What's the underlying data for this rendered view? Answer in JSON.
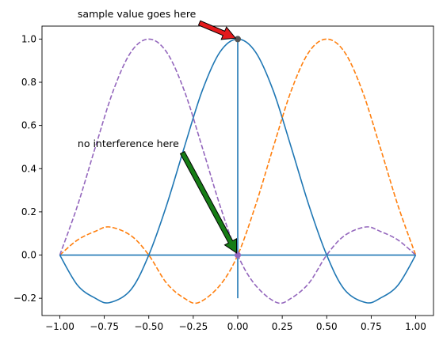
{
  "chart_data": {
    "type": "line",
    "title": "",
    "xlabel": "",
    "ylabel": "",
    "xlim": [
      -1.1,
      1.1
    ],
    "ylim": [
      -0.28,
      1.06
    ],
    "grid": false,
    "legend": "none",
    "x_ticks": [
      -1.0,
      -0.75,
      -0.5,
      -0.25,
      0.0,
      0.25,
      0.5,
      0.75,
      1.0
    ],
    "x_tick_labels": [
      "−1.00",
      "−0.75",
      "−0.50",
      "−0.25",
      "0.00",
      "0.25",
      "0.50",
      "0.75",
      "1.00"
    ],
    "y_ticks": [
      -0.2,
      0.0,
      0.2,
      0.4,
      0.6,
      0.8,
      1.0
    ],
    "y_tick_labels": [
      "−0.2",
      "0.0",
      "0.2",
      "0.4",
      "0.6",
      "0.8",
      "1.0"
    ],
    "series": [
      {
        "color": "#1f77b4",
        "style": "solid",
        "x": [
          -1.0,
          -0.9,
          -0.8,
          -0.72,
          -0.6,
          -0.5,
          -0.4,
          -0.3,
          -0.2,
          -0.1,
          0.0,
          0.1,
          0.2,
          0.3,
          0.4,
          0.5,
          0.6,
          0.72,
          0.8,
          0.9,
          1.0
        ],
        "values": [
          0.0,
          -0.14,
          -0.2,
          -0.22,
          -0.16,
          0.0,
          0.23,
          0.5,
          0.76,
          0.94,
          1.0,
          0.94,
          0.76,
          0.5,
          0.23,
          0.0,
          -0.16,
          -0.22,
          -0.2,
          -0.14,
          0.0
        ]
      },
      {
        "color": "#ff7f0e",
        "style": "dashed",
        "x": [
          -1.0,
          -0.9,
          -0.8,
          -0.72,
          -0.6,
          -0.5,
          -0.4,
          -0.3,
          -0.22,
          -0.1,
          0.0,
          0.1,
          0.2,
          0.3,
          0.4,
          0.5,
          0.6,
          0.7,
          0.8,
          0.9,
          1.0
        ],
        "values": [
          0.0,
          0.07,
          0.11,
          0.13,
          0.09,
          0.0,
          -0.13,
          -0.2,
          -0.22,
          -0.14,
          0.0,
          0.23,
          0.5,
          0.76,
          0.94,
          1.0,
          0.94,
          0.76,
          0.5,
          0.23,
          0.0
        ]
      },
      {
        "color": "#9467bd",
        "style": "dashed",
        "x": [
          -1.0,
          -0.9,
          -0.8,
          -0.7,
          -0.6,
          -0.5,
          -0.4,
          -0.3,
          -0.2,
          -0.1,
          0.0,
          0.1,
          0.22,
          0.3,
          0.4,
          0.5,
          0.6,
          0.72,
          0.8,
          0.9,
          1.0
        ],
        "values": [
          0.0,
          0.23,
          0.5,
          0.76,
          0.94,
          1.0,
          0.94,
          0.76,
          0.5,
          0.23,
          0.0,
          -0.14,
          -0.22,
          -0.2,
          -0.13,
          0.0,
          0.09,
          0.13,
          0.11,
          0.07,
          0.0
        ]
      }
    ],
    "reference_lines": {
      "color": "#1f77b4",
      "horizontal": {
        "y": 0.0,
        "x_from": -1.0,
        "x_to": 1.0
      },
      "vertical": {
        "x": 0.0,
        "y_from": -0.2,
        "y_to": 1.0
      }
    },
    "markers": [
      {
        "x": 0.0,
        "y": 1.0,
        "color": "#555555"
      },
      {
        "x": 0.0,
        "y": 0.0,
        "color": "#9467bd"
      }
    ],
    "annotations": [
      {
        "text": "sample value goes here",
        "text_x": -0.9,
        "text_y": 1.1,
        "target_x": 0.0,
        "target_y": 1.0,
        "arrow_color": "#e41a1c"
      },
      {
        "text": "no interference here",
        "text_x": -0.9,
        "text_y": 0.5,
        "target_x": 0.0,
        "target_y": 0.0,
        "arrow_color": "#167d16"
      }
    ]
  }
}
